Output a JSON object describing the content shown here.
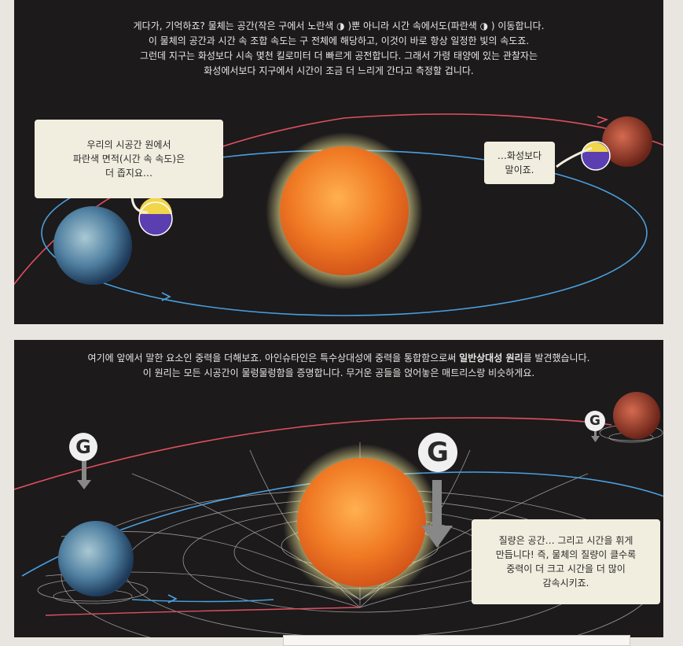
{
  "panel1": {
    "caption": [
      "게다가, 기억하죠? 물체는 공간(작은 구에서 노란색 ◑ )뿐 아니라 시간 속에서도(파란색 ◑ ) 이동합니다.",
      "이 물체의 공간과 시간 속 조합 속도는 구 전체에 해당하고, 이것이 바로 항상 일정한 빛의 속도죠.",
      "그런데 지구는 화성보다 시속 몇천 킬로미터 더 빠르게 공전합니다. 그래서 가령 태양에 있는 관찰자는",
      "화성에서보다 지구에서 시간이 조금 더 느리게 간다고 측정할 겁니다."
    ],
    "bubble_earth": [
      "우리의 시공간 원에서",
      "파란색 면적(시간 속 속도)은",
      "더 좁지요…"
    ],
    "bubble_mars": [
      "…화성보다",
      "말이죠."
    ]
  },
  "panel2": {
    "caption_line1_pre": "여기에 앞에서 말한 요소인 중력을 더해보죠. 아인슈타인은 특수상대성에 중력을 통합함으로써 ",
    "caption_line1_bold": "일반상대성 원리",
    "caption_line1_post": "를 발견했습니다.",
    "caption_line2": "이 원리는 모든 시공간이 물렁물렁함을 증명합니다. 무거운 공들을 얹어놓은 매트리스랑 비슷하게요.",
    "g_label": "G",
    "bubble": [
      "질량은 공간… 그리고 시간을 휘게",
      "만듭니다! 즉, 물체의 질량이 클수록",
      "중력이 더 크고 시간을 더 많이",
      "감속시키죠."
    ]
  },
  "colors": {
    "panel_bg": "#1c1a1b",
    "sun": "#f08a2c",
    "earth_orbit": "#4aa0e0",
    "mars_orbit": "#e05060",
    "time_color": "#5b3fb0",
    "space_color": "#f2d64a"
  }
}
